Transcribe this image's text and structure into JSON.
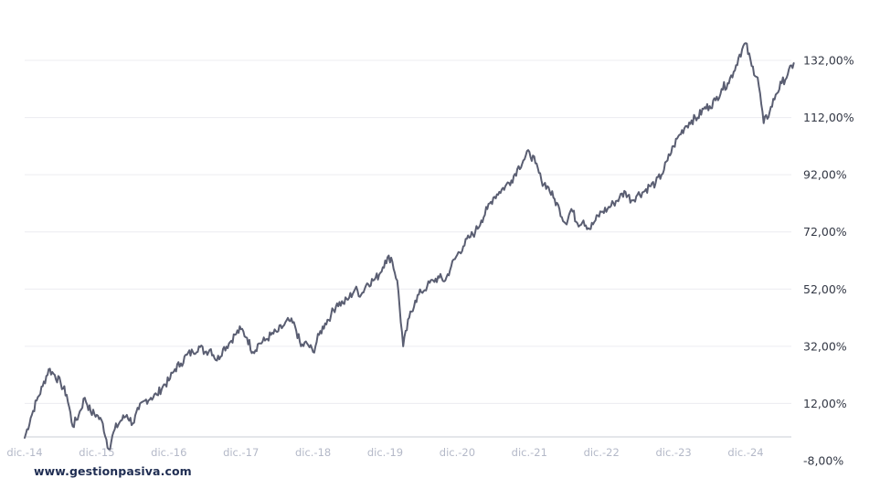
{
  "watermark": "www.gestionpasiva.com",
  "colors": {
    "series": "#5a5e72",
    "grid": "#ececf0",
    "axis_text": "#333845",
    "date_text": "#b4b9c8",
    "watermark": "#1f2d52"
  },
  "chart_data": {
    "type": "line",
    "title": "",
    "xlabel": "",
    "ylabel": "",
    "ylim": [
      -8,
      140
    ],
    "y_ticks": [
      "132,00%",
      "112,00%",
      "92,00%",
      "72,00%",
      "52,00%",
      "32,00%",
      "12,00%",
      "-8,00%"
    ],
    "y_tick_values": [
      132,
      112,
      92,
      72,
      52,
      32,
      12,
      -8
    ],
    "x_ticks": [
      "dic.-14",
      "dic.-15",
      "dic.-16",
      "dic.-17",
      "dic.-18",
      "dic.-19",
      "dic.-20",
      "dic.-21",
      "dic.-22",
      "dic.-23",
      "dic.-24"
    ],
    "grid": true,
    "legend": "none",
    "series": [
      {
        "x": [
          "2014-12",
          "2015-01",
          "2015-02",
          "2015-03",
          "2015-04",
          "2015-05",
          "2015-06",
          "2015-07",
          "2015-08",
          "2015-09",
          "2015-10",
          "2015-11",
          "2015-12",
          "2016-01",
          "2016-02",
          "2016-03",
          "2016-04",
          "2016-05",
          "2016-06",
          "2016-07",
          "2016-08",
          "2016-09",
          "2016-10",
          "2016-11",
          "2016-12",
          "2017-01",
          "2017-02",
          "2017-03",
          "2017-04",
          "2017-05",
          "2017-06",
          "2017-07",
          "2017-08",
          "2017-09",
          "2017-10",
          "2017-11",
          "2017-12",
          "2018-01",
          "2018-02",
          "2018-03",
          "2018-04",
          "2018-05",
          "2018-06",
          "2018-07",
          "2018-08",
          "2018-09",
          "2018-10",
          "2018-11",
          "2018-12",
          "2019-01",
          "2019-02",
          "2019-03",
          "2019-04",
          "2019-05",
          "2019-06",
          "2019-07",
          "2019-08",
          "2019-09",
          "2019-10",
          "2019-11",
          "2019-12",
          "2020-01",
          "2020-02",
          "2020-03",
          "2020-04",
          "2020-05",
          "2020-06",
          "2020-07",
          "2020-08",
          "2020-09",
          "2020-10",
          "2020-11",
          "2020-12",
          "2021-01",
          "2021-02",
          "2021-03",
          "2021-04",
          "2021-05",
          "2021-06",
          "2021-07",
          "2021-08",
          "2021-09",
          "2021-10",
          "2021-11",
          "2021-12",
          "2022-01",
          "2022-02",
          "2022-03",
          "2022-04",
          "2022-05",
          "2022-06",
          "2022-07",
          "2022-08",
          "2022-09",
          "2022-10",
          "2022-11",
          "2022-12",
          "2023-01",
          "2023-02",
          "2023-03",
          "2023-04",
          "2023-05",
          "2023-06",
          "2023-07",
          "2023-08",
          "2023-09",
          "2023-10",
          "2023-11",
          "2023-12",
          "2024-01",
          "2024-02",
          "2024-03",
          "2024-04",
          "2024-05",
          "2024-06",
          "2024-07",
          "2024-08",
          "2024-09",
          "2024-10",
          "2024-11",
          "2024-12",
          "2025-01",
          "2025-02",
          "2025-03",
          "2025-04",
          "2025-05",
          "2025-06",
          "2025-07",
          "2025-08"
        ],
        "values": [
          0,
          7,
          13,
          18,
          24,
          22,
          19,
          15,
          4,
          8,
          14,
          9,
          8,
          5,
          -4,
          3,
          6,
          8,
          5,
          10,
          13,
          14,
          15,
          18,
          20,
          24,
          26,
          29,
          30,
          32,
          30,
          31,
          27,
          31,
          33,
          36,
          38,
          35,
          30,
          33,
          34,
          36,
          37,
          39,
          41,
          39,
          32,
          33,
          30,
          36,
          40,
          43,
          47,
          47,
          49,
          52,
          50,
          54,
          55,
          57,
          62,
          63,
          55,
          32,
          42,
          48,
          51,
          53,
          55,
          56,
          55,
          60,
          64,
          67,
          70,
          72,
          76,
          80,
          84,
          86,
          88,
          90,
          94,
          97,
          100,
          96,
          90,
          88,
          84,
          80,
          75,
          80,
          75,
          76,
          73,
          76,
          79,
          80,
          82,
          84,
          86,
          83,
          85,
          86,
          88,
          89,
          92,
          97,
          102,
          106,
          109,
          111,
          112,
          115,
          116,
          118,
          122,
          124,
          128,
          134,
          138,
          130,
          126,
          110,
          114,
          120,
          124,
          127,
          131
        ]
      }
    ]
  }
}
